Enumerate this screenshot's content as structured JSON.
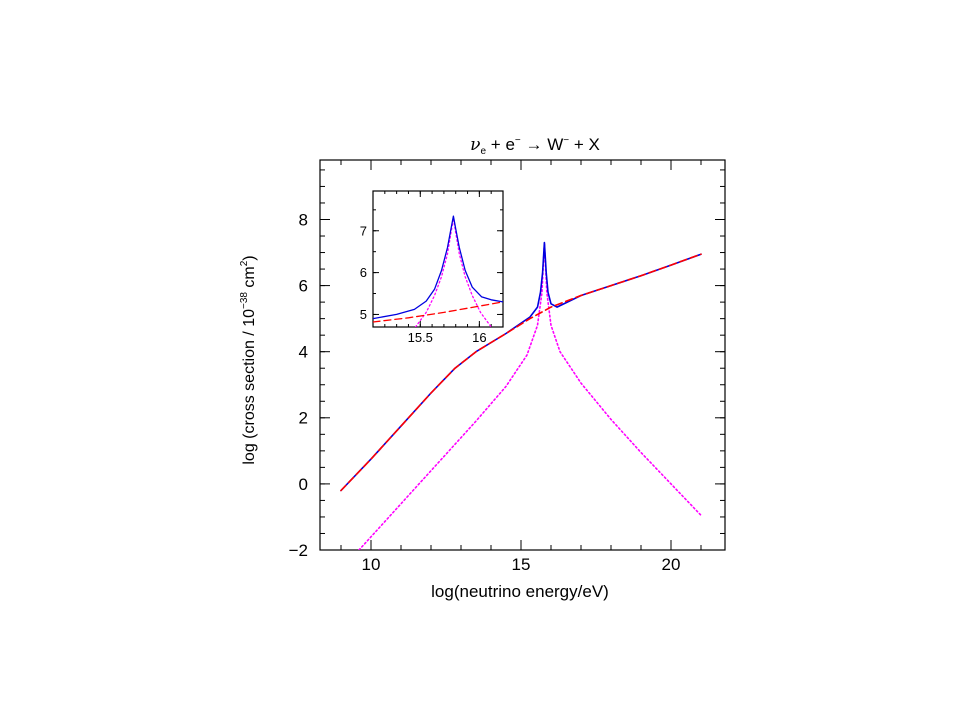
{
  "title": {
    "nu": "ν",
    "nu_sub": "e",
    "plus1": " + ",
    "e": "e",
    "e_sup": "−",
    "arrow": " → ",
    "w": "W",
    "w_sup": "−",
    "plus2": " + X"
  },
  "colors": {
    "total": "#0000e0",
    "nonresonant": "#ff0000",
    "resonance": "#ff00ff",
    "axis": "#000000"
  },
  "chart_data": [
    {
      "type": "line",
      "xlabel": "log(neutrino energy/eV)",
      "ylabel": "log (cross section / 10",
      "ylabel_exp": "−38",
      "ylabel_unit": " cm",
      "ylabel_unit_exp": "2",
      "ylabel_close": ")",
      "xlim": [
        8.3,
        21.8
      ],
      "ylim": [
        -2,
        9.8
      ],
      "xticks": [
        10,
        15,
        20
      ],
      "xtick_labels": [
        "10",
        "15",
        "20"
      ],
      "yticks": [
        -2,
        0,
        2,
        4,
        6,
        8
      ],
      "ytick_labels": [
        "−2",
        "0",
        "2",
        "4",
        "6",
        "8"
      ],
      "series": [
        {
          "key": "nonresonant",
          "style": "dashed",
          "x": [
            9.0,
            10.0,
            11.0,
            12.0,
            12.8,
            13.5,
            14.5,
            15.3,
            16.0,
            17.0,
            18.0,
            19.0,
            20.0,
            21.0
          ],
          "y": [
            -0.2,
            0.75,
            1.75,
            2.75,
            3.5,
            4.0,
            4.55,
            5.0,
            5.35,
            5.7,
            6.0,
            6.3,
            6.62,
            6.95
          ]
        },
        {
          "key": "resonance",
          "style": "dotted",
          "x": [
            9.6,
            10.5,
            11.5,
            12.5,
            13.5,
            14.5,
            15.2,
            15.55,
            15.7,
            15.78,
            15.86,
            16.0,
            16.3,
            17.0,
            18.0,
            19.0,
            20.0,
            21.0
          ],
          "y": [
            -2.0,
            -1.1,
            -0.1,
            0.9,
            1.9,
            2.95,
            3.9,
            4.8,
            5.8,
            7.3,
            5.8,
            4.8,
            4.0,
            3.05,
            1.95,
            0.95,
            0.0,
            -0.95
          ]
        },
        {
          "key": "total",
          "style": "solid",
          "x": [
            9.0,
            10.0,
            11.0,
            12.0,
            12.8,
            13.5,
            14.5,
            15.3,
            15.55,
            15.65,
            15.72,
            15.78,
            15.84,
            15.9,
            16.0,
            16.2,
            17.0,
            18.0,
            19.0,
            20.0,
            21.0
          ],
          "y": [
            -0.2,
            0.75,
            1.75,
            2.75,
            3.5,
            4.0,
            4.55,
            5.05,
            5.35,
            5.8,
            6.4,
            7.3,
            6.4,
            5.8,
            5.45,
            5.35,
            5.7,
            6.0,
            6.3,
            6.62,
            6.95
          ]
        }
      ]
    },
    {
      "type": "line",
      "xlim": [
        15.1,
        16.2
      ],
      "ylim": [
        4.7,
        7.95
      ],
      "xticks": [
        15.5,
        16
      ],
      "xtick_labels": [
        "15.5",
        "16"
      ],
      "yticks": [
        5,
        6,
        7
      ],
      "ytick_labels": [
        "5",
        "6",
        "7"
      ],
      "series": [
        {
          "key": "nonresonant",
          "style": "dashed",
          "x": [
            15.1,
            15.4,
            15.7,
            16.0,
            16.2
          ],
          "y": [
            4.82,
            4.92,
            5.05,
            5.2,
            5.3
          ]
        },
        {
          "key": "resonance",
          "style": "dotted",
          "x": [
            15.46,
            15.55,
            15.62,
            15.68,
            15.73,
            15.76,
            15.78,
            15.8,
            15.83,
            15.88,
            15.94,
            16.01,
            16.1
          ],
          "y": [
            4.7,
            5.05,
            5.45,
            5.9,
            6.45,
            6.95,
            7.3,
            6.95,
            6.45,
            5.9,
            5.45,
            5.05,
            4.7
          ]
        },
        {
          "key": "total",
          "style": "solid",
          "x": [
            15.1,
            15.3,
            15.45,
            15.55,
            15.62,
            15.68,
            15.73,
            15.76,
            15.78,
            15.8,
            15.83,
            15.88,
            15.94,
            16.02,
            16.1,
            16.2
          ],
          "y": [
            4.9,
            5.0,
            5.12,
            5.32,
            5.6,
            6.05,
            6.6,
            7.05,
            7.35,
            7.05,
            6.6,
            6.05,
            5.65,
            5.42,
            5.35,
            5.3
          ]
        }
      ]
    }
  ]
}
